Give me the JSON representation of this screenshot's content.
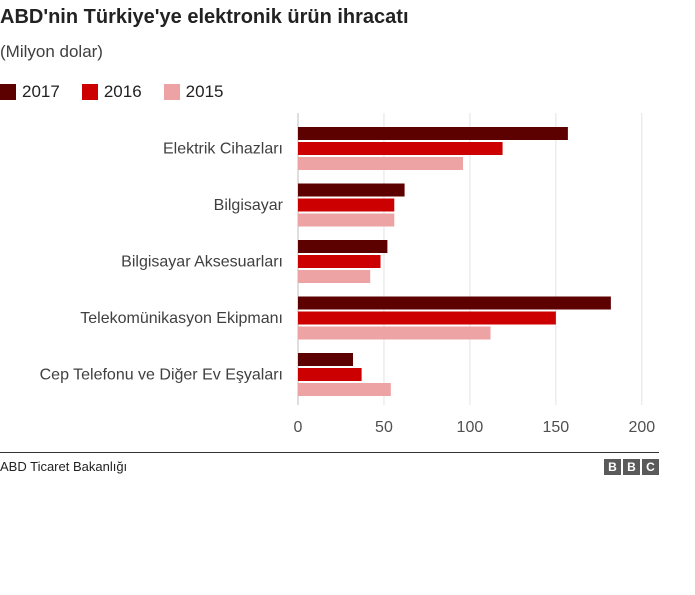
{
  "header": {
    "title": "ABD'nin Türkiye'ye elektronik ürün ihracatı",
    "subtitle": "(Milyon dolar)"
  },
  "legend": [
    {
      "label": "2017",
      "color": "#5c0000"
    },
    {
      "label": "2016",
      "color": "#cc0000"
    },
    {
      "label": "2015",
      "color": "#eda3a3"
    }
  ],
  "footer": {
    "source": "ABD Ticaret Bakanlığı",
    "logo_letters": [
      "B",
      "B",
      "C"
    ]
  },
  "chart_data": {
    "type": "bar",
    "orientation": "horizontal",
    "title": "ABD'nin Türkiye'ye elektronik ürün ihracatı",
    "subtitle": "(Milyon dolar)",
    "categories": [
      "Elektrik Cihazları",
      "Bilgisayar",
      "Bilgisayar Aksesuarları",
      "Telekomünikasyon Ekipmanı",
      "Cep Telefonu ve Diğer Ev Eşyaları"
    ],
    "series": [
      {
        "name": "2017",
        "color": "#5c0000",
        "values": [
          157,
          62,
          52,
          182,
          32
        ]
      },
      {
        "name": "2016",
        "color": "#cc0000",
        "values": [
          119,
          56,
          48,
          150,
          37
        ]
      },
      {
        "name": "2015",
        "color": "#eda3a3",
        "values": [
          96,
          56,
          42,
          112,
          54
        ]
      }
    ],
    "xlim": [
      0,
      210
    ],
    "xticks": [
      0,
      50,
      100,
      150,
      200
    ],
    "grid": true,
    "legend_position": "top-left"
  }
}
